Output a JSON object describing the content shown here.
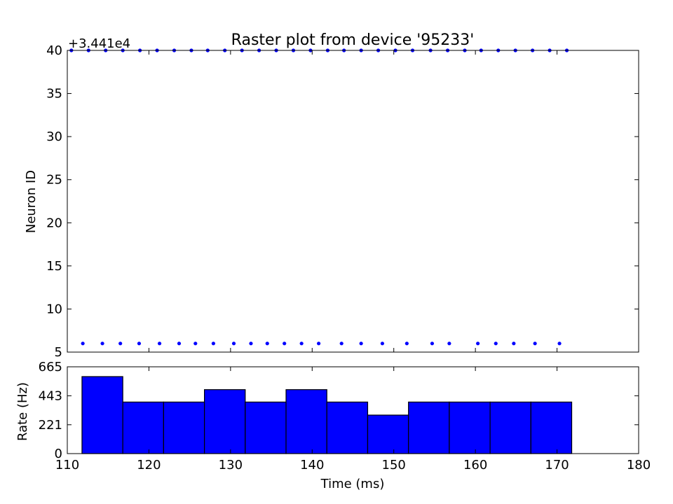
{
  "chart_data": [
    {
      "type": "scatter",
      "title": "Raster plot from device '95233'",
      "ylabel": "Neuron ID",
      "offset_label": "+3.441e4",
      "ylim": [
        5,
        40
      ],
      "yticks": [
        5,
        10,
        15,
        20,
        25,
        30,
        35,
        40
      ],
      "xlim": [
        110,
        180
      ],
      "grid": false,
      "marker_color": "#0000ff",
      "series": [
        {
          "x": [
            110.5,
            112.6,
            114.7,
            116.8,
            118.9,
            121.0,
            123.1,
            125.2,
            127.2,
            129.3,
            131.4,
            133.5,
            135.6,
            137.7,
            139.8,
            141.9,
            143.9,
            146.0,
            148.1,
            150.2,
            152.3,
            154.5,
            156.6,
            158.7,
            160.7,
            162.8,
            164.9,
            167.0,
            169.1,
            171.2
          ],
          "y": [
            40,
            40,
            40,
            40,
            40,
            40,
            40,
            40,
            40,
            40,
            40,
            40,
            40,
            40,
            40,
            40,
            40,
            40,
            40,
            40,
            40,
            40,
            40,
            40,
            40,
            40,
            40,
            40,
            40,
            40
          ]
        },
        {
          "x": [
            111.9,
            114.3,
            116.5,
            118.8,
            121.3,
            123.7,
            125.7,
            127.9,
            130.4,
            132.5,
            134.5,
            136.6,
            138.7,
            140.8,
            143.6,
            146.0,
            148.6,
            151.6,
            154.7,
            156.8,
            160.3,
            162.5,
            164.7,
            167.3,
            170.3
          ],
          "y": [
            6,
            6,
            6,
            6,
            6,
            6,
            6,
            6,
            6,
            6,
            6,
            6,
            6,
            6,
            6,
            6,
            6,
            6,
            6,
            6,
            6,
            6,
            6,
            6,
            6
          ]
        }
      ]
    },
    {
      "type": "bar",
      "xlabel": "Time (ms)",
      "ylabel": "Rate (Hz)",
      "xlim": [
        110,
        180
      ],
      "xticks": [
        110,
        120,
        130,
        140,
        150,
        160,
        170,
        180
      ],
      "ylim": [
        0,
        665
      ],
      "yticks": [
        0,
        221,
        443,
        665
      ],
      "bar_color": "#0000ff",
      "bin_edges": [
        111.8,
        116.8,
        121.8,
        126.8,
        131.8,
        136.8,
        141.8,
        146.8,
        151.8,
        156.8,
        161.8,
        166.8,
        171.8
      ],
      "values": [
        590,
        395,
        395,
        490,
        395,
        490,
        395,
        295,
        395,
        395,
        395,
        395
      ]
    }
  ]
}
